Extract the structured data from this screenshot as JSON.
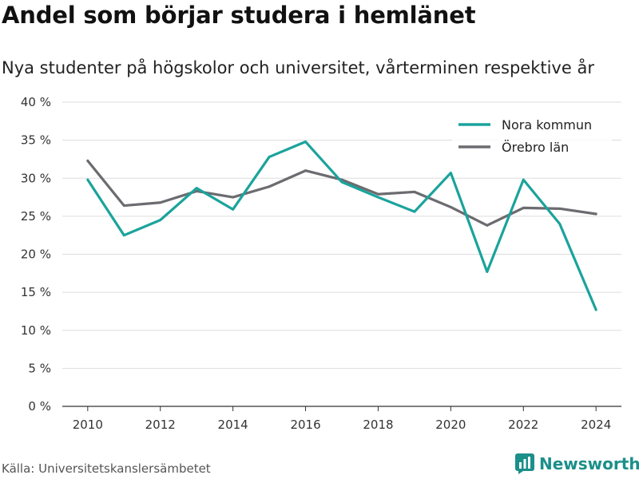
{
  "title": "Andel som börjar studera i hemlänet",
  "subtitle": "Nya studenter på högskolor och universitet, vårterminen respektive år",
  "source": "Källa: Universitetskanslersämbetet",
  "brand": {
    "name": "Newsworthy",
    "icon": "bar-chart-logo-icon",
    "color": "#1b8f8a"
  },
  "chart_data": {
    "type": "line",
    "x": [
      2010,
      2011,
      2012,
      2013,
      2014,
      2015,
      2016,
      2017,
      2018,
      2019,
      2020,
      2021,
      2022,
      2023,
      2024
    ],
    "series": [
      {
        "name": "Nora kommun",
        "color": "#1ba39c",
        "values": [
          29.8,
          22.5,
          24.5,
          28.7,
          25.9,
          32.8,
          34.8,
          29.5,
          27.5,
          25.6,
          30.7,
          17.7,
          29.8,
          24.0,
          12.7
        ]
      },
      {
        "name": "Örebro län",
        "color": "#6b6b70",
        "values": [
          32.3,
          26.4,
          26.8,
          28.3,
          27.5,
          28.9,
          31.0,
          29.8,
          27.9,
          28.2,
          26.2,
          23.8,
          26.1,
          26.0,
          25.3
        ]
      }
    ],
    "xticks": [
      2010,
      2012,
      2014,
      2016,
      2018,
      2020,
      2022,
      2024
    ],
    "yticks": [
      0,
      5,
      10,
      15,
      20,
      25,
      30,
      35,
      40
    ],
    "ytick_labels": [
      "0 %",
      "5 %",
      "10 %",
      "15 %",
      "20 %",
      "25 %",
      "30 %",
      "35 %",
      "40 %"
    ],
    "xlim": [
      2009.3,
      2024.7
    ],
    "ylim": [
      0,
      40
    ],
    "grid": true,
    "legend": "top-right"
  }
}
